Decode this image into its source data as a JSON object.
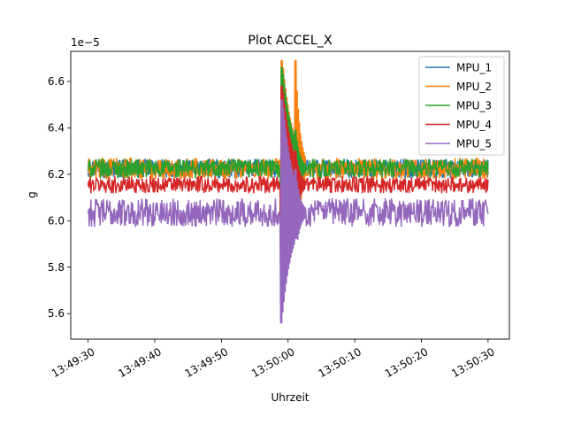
{
  "chart_data": {
    "type": "line",
    "title": "Plot ACCEL_X",
    "xlabel": "Uhrzeit",
    "ylabel": "g",
    "y_offset_label": "1e−5",
    "x_ticks": [
      "13:49:30",
      "13:49:40",
      "13:49:50",
      "13:50:00",
      "13:50:10",
      "13:50:20",
      "13:50:30"
    ],
    "x_tick_seconds": [
      0,
      10,
      20,
      30,
      40,
      50,
      60
    ],
    "x_range_seconds": [
      -2.6,
      63.2
    ],
    "y_ticks": [
      "5.6",
      "5.8",
      "6.0",
      "6.2",
      "6.4",
      "6.6"
    ],
    "y_tick_values": [
      5.6,
      5.8,
      6.0,
      6.2,
      6.4,
      6.6
    ],
    "ylim": [
      5.49,
      6.73
    ],
    "legend_position": "top-right",
    "grid": false,
    "series": [
      {
        "name": "MPU_1",
        "color": "#1f77b4",
        "base": 6.225,
        "amp": 0.04,
        "burst": [
          6.62,
          5.8,
          6.45
        ]
      },
      {
        "name": "MPU_2",
        "color": "#ff7f0e",
        "base": 6.225,
        "amp": 0.045,
        "burst": [
          6.69,
          5.85,
          6.69
        ]
      },
      {
        "name": "MPU_3",
        "color": "#2ca02c",
        "base": 6.225,
        "amp": 0.04,
        "burst": [
          6.66,
          5.82,
          6.39
        ]
      },
      {
        "name": "MPU_4",
        "color": "#d62728",
        "base": 6.155,
        "amp": 0.035,
        "burst": [
          6.58,
          5.8,
          6.3
        ]
      },
      {
        "name": "MPU_5",
        "color": "#9467bd",
        "base": 6.035,
        "amp": 0.06,
        "burst": [
          6.52,
          5.56,
          6.22
        ]
      }
    ]
  }
}
